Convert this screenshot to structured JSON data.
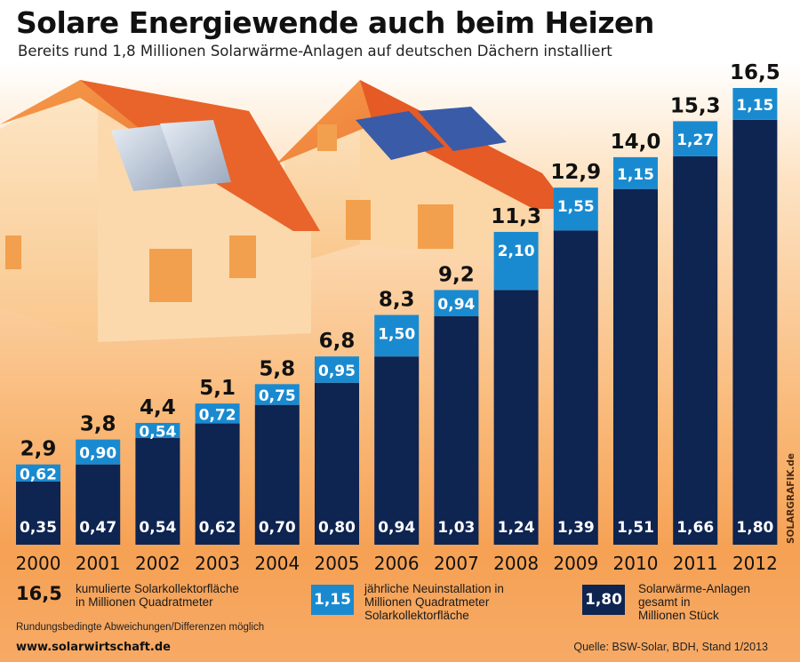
{
  "header": {
    "title": "Solare Energiewende auch beim Heizen",
    "subtitle": "Bereits rund 1,8 Millionen Solarwärme-Anlagen auf deutschen Dächern installiert"
  },
  "colors": {
    "dark_bar": "#0e2451",
    "light_bar": "#1a8ad0",
    "roof": "#ef7a2e",
    "wall": "#fbd9ad"
  },
  "chart_data": {
    "type": "bar",
    "categories": [
      "2000",
      "2001",
      "2002",
      "2003",
      "2004",
      "2005",
      "2006",
      "2007",
      "2008",
      "2009",
      "2010",
      "2011",
      "2012"
    ],
    "series": [
      {
        "values": [
          0.35,
          0.47,
          0.54,
          0.62,
          0.7,
          0.8,
          0.94,
          1.03,
          1.24,
          1.39,
          1.51,
          1.66,
          1.8
        ],
        "labels": [
          "0,35",
          "0,47",
          "0,54",
          "0,62",
          "0,70",
          "0,80",
          "0,94",
          "1,03",
          "1,24",
          "1,39",
          "1,51",
          "1,66",
          "1,80"
        ]
      },
      {
        "values": [
          0.62,
          0.9,
          0.54,
          0.72,
          0.75,
          0.95,
          1.5,
          0.94,
          2.1,
          1.55,
          1.15,
          1.27,
          1.15
        ],
        "labels": [
          "0,62",
          "0,90",
          "0,54",
          "0,72",
          "0,75",
          "0,95",
          "1,50",
          "0,94",
          "2,10",
          "1,55",
          "1,15",
          "1,27",
          "1,15"
        ]
      }
    ],
    "totals": {
      "values": [
        2.9,
        3.8,
        4.4,
        5.1,
        5.8,
        6.8,
        8.3,
        9.2,
        11.3,
        12.9,
        14.0,
        15.3,
        16.5
      ],
      "labels": [
        "2,9",
        "3,8",
        "4,4",
        "5,1",
        "5,8",
        "6,8",
        "8,3",
        "9,2",
        "11,3",
        "12,9",
        "14,0",
        "15,3",
        "16,5"
      ]
    },
    "ylim": [
      0,
      16.5
    ]
  },
  "legend": {
    "total_key": "16,5",
    "total_text": [
      "kumulierte Solarkollektorfläche",
      "in Millionen Quadratmeter"
    ],
    "annual_key": "1,15",
    "annual_text": [
      "jährliche Neuinstallation in",
      "Millionen Quadratmeter",
      "Solarkollektorfläche"
    ],
    "systems_key": "1,80",
    "systems_text": [
      "Solarwärme-Anlagen",
      "gesamt in",
      "Millionen Stück"
    ]
  },
  "footer": {
    "note": "Rundungsbedingte Abweichungen/Differenzen möglich",
    "website": "www.solarwirtschaft.de",
    "source": "Quelle: BSW-Solar, BDH, Stand 1/2013",
    "credit": "SOLARGRAFIK.de"
  }
}
